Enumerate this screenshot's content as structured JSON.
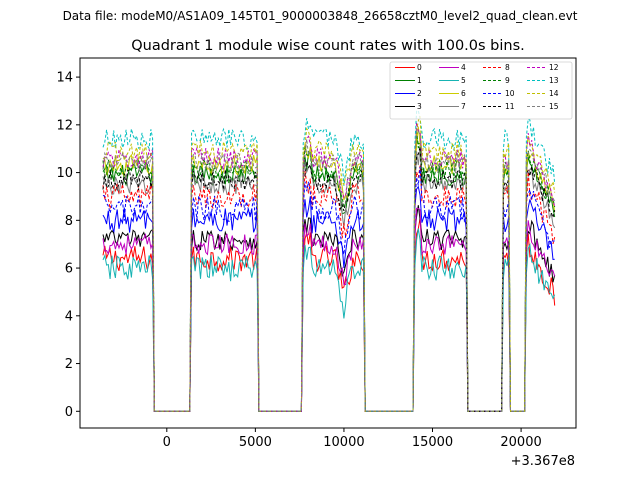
{
  "chart_data": {
    "type": "line",
    "suptitle": "Data file: modeM0/AS1A09_145T01_9000003848_26658cztM0_level2_quad_clean.evt",
    "title": "Quadrant 1 module wise count rates with 100.0s bins.",
    "xlabel": "",
    "ylabel": "",
    "x_offset_label": "+3.367e8",
    "xlim": [
      -4900,
      23100
    ],
    "ylim": [
      -0.7,
      14.8
    ],
    "xticks": [
      0,
      5000,
      10000,
      15000,
      20000
    ],
    "yticks": [
      0,
      2,
      4,
      6,
      8,
      10,
      12,
      14
    ],
    "grid": false,
    "legend_position": "top-right",
    "on_segments": [
      [
        -3600,
        -800
      ],
      [
        1400,
        5100
      ],
      [
        7700,
        11100
      ],
      [
        14000,
        16900
      ],
      [
        19000,
        19300
      ],
      [
        20300,
        21900
      ]
    ],
    "zero_segments": [
      [
        -700,
        1300
      ],
      [
        5200,
        7600
      ],
      [
        11200,
        13900
      ],
      [
        17000,
        18900
      ],
      [
        19400,
        20200
      ]
    ],
    "series": [
      {
        "name": "0",
        "color": "#ff0000",
        "style": "solid",
        "level": 6.4,
        "noise": 0.25
      },
      {
        "name": "1",
        "color": "#008000",
        "style": "solid",
        "level": 9.9,
        "noise": 0.2
      },
      {
        "name": "2",
        "color": "#0000ff",
        "style": "solid",
        "level": 8.0,
        "noise": 0.25
      },
      {
        "name": "3",
        "color": "#000000",
        "style": "solid",
        "level": 7.2,
        "noise": 0.2
      },
      {
        "name": "4",
        "color": "#bf00bf",
        "style": "solid",
        "level": 7.0,
        "noise": 0.2
      },
      {
        "name": "5",
        "color": "#17b3b3",
        "style": "solid",
        "level": 6.0,
        "noise": 0.25
      },
      {
        "name": "6",
        "color": "#cccc00",
        "style": "solid",
        "level": 10.3,
        "noise": 0.2
      },
      {
        "name": "7",
        "color": "#808080",
        "style": "solid",
        "level": 9.5,
        "noise": 0.2
      },
      {
        "name": "8",
        "color": "#ff0000",
        "style": "dashed",
        "level": 9.0,
        "noise": 0.25
      },
      {
        "name": "9",
        "color": "#008000",
        "style": "dashed",
        "level": 10.1,
        "noise": 0.2
      },
      {
        "name": "10",
        "color": "#0000ff",
        "style": "dashed",
        "level": 8.5,
        "noise": 0.25
      },
      {
        "name": "11",
        "color": "#000000",
        "style": "dashed",
        "level": 9.7,
        "noise": 0.2
      },
      {
        "name": "12",
        "color": "#bf00bf",
        "style": "dashed",
        "level": 10.6,
        "noise": 0.2
      },
      {
        "name": "13",
        "color": "#00bfbf",
        "style": "dashed",
        "level": 11.4,
        "noise": 0.2
      },
      {
        "name": "14",
        "color": "#bfbf00",
        "style": "dashed",
        "level": 10.9,
        "noise": 0.2
      },
      {
        "name": "15",
        "color": "#808080",
        "style": "dashed",
        "level": 10.4,
        "noise": 0.2
      }
    ]
  }
}
